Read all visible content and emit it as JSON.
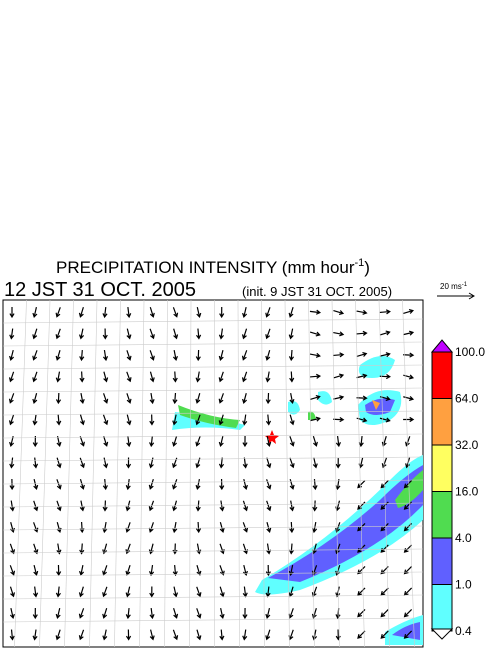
{
  "header": {
    "title": {
      "text": "PRECIPITATION INTENSITY (mm hour",
      "superscript": "-1",
      "close": ")"
    },
    "time": "12 JST 31 OCT. 2005",
    "init": "(init. 9 JST 31 OCT. 2005)"
  },
  "scale_arrow": {
    "text": "20 ms",
    "superscript": "-1"
  },
  "colorbar": [
    {
      "label": "100.0",
      "color": "#ff0000"
    },
    {
      "label": "64.0",
      "color": "#ffa040"
    },
    {
      "label": "32.0",
      "color": "#ffff60"
    },
    {
      "label": "16.0",
      "color": "#50dc50"
    },
    {
      "label": "4.0",
      "color": "#6060ff"
    },
    {
      "label": "1.0",
      "color": "#60ffff"
    },
    {
      "label": "0.4",
      "color": "#ffffff"
    }
  ],
  "colorbar_top_color": "#c000ff"
}
